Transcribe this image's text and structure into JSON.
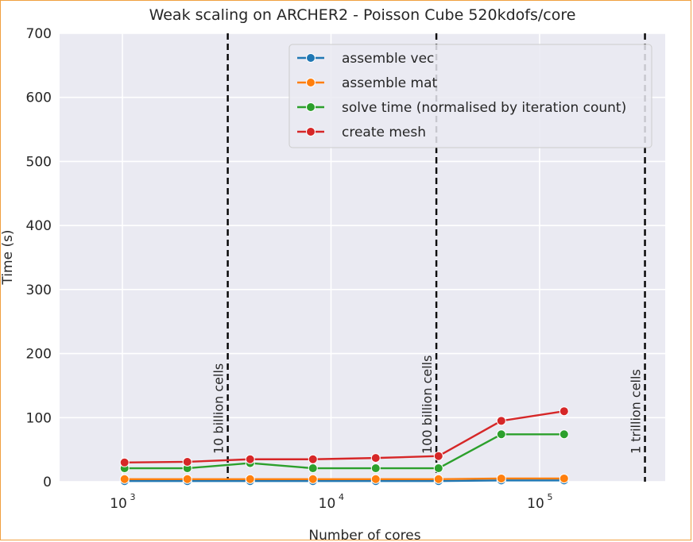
{
  "chart_data": {
    "type": "line",
    "title": "Weak scaling on ARCHER2 - Poisson Cube 520kdofs/core",
    "xlabel": "Number of cores",
    "ylabel": "Time (s)",
    "xscale": "log",
    "xlim": [
      500,
      400000
    ],
    "ylim": [
      0,
      700
    ],
    "yticks": [
      0,
      100,
      200,
      300,
      400,
      500,
      600,
      700
    ],
    "xticks": [
      {
        "value": 1000,
        "base": "10",
        "exp": "3"
      },
      {
        "value": 10000,
        "base": "10",
        "exp": "4"
      },
      {
        "value": 100000,
        "base": "10",
        "exp": "5"
      }
    ],
    "grid": true,
    "legend_position": "top-right",
    "x": [
      1024,
      2048,
      4096,
      8192,
      16384,
      32768,
      65536,
      131072
    ],
    "series": [
      {
        "name": "assemble vec",
        "color": "#1f77b4",
        "values": [
          1,
          1,
          1,
          1,
          1,
          1,
          2,
          2
        ]
      },
      {
        "name": "assemble mat",
        "color": "#ff7f0e",
        "values": [
          4,
          4,
          4,
          4,
          4,
          4,
          5,
          5
        ]
      },
      {
        "name": "solve time (normalised by iteration count)",
        "color": "#2ca02c",
        "values": [
          21,
          21,
          29,
          21,
          21,
          21,
          74,
          74
        ]
      },
      {
        "name": "create mesh",
        "color": "#d62728",
        "values": [
          30,
          31,
          35,
          35,
          37,
          40,
          95,
          110
        ]
      }
    ],
    "annotations": [
      {
        "x": 3200,
        "label": "10 billion cells"
      },
      {
        "x": 32000,
        "label": "100 billion cells"
      },
      {
        "x": 320000,
        "label": "1 trillion cells"
      }
    ]
  }
}
